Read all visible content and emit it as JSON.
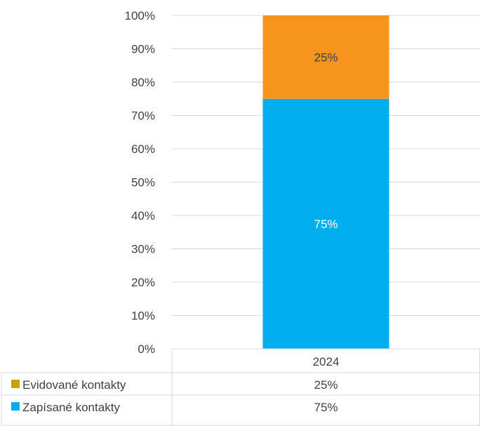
{
  "chart_data": {
    "type": "bar",
    "stacked": true,
    "categories": [
      "2024"
    ],
    "series": [
      {
        "name": "Zapísané kontakty",
        "values": [
          75
        ],
        "label": "75%",
        "color": "#00AEEF"
      },
      {
        "name": "Evidované kontakty",
        "values": [
          25
        ],
        "label": "25%",
        "color": "#F7941D"
      }
    ],
    "ylim": [
      0,
      100
    ],
    "yticks": [
      "0%",
      "10%",
      "20%",
      "30%",
      "40%",
      "50%",
      "60%",
      "70%",
      "80%",
      "90%",
      "100%"
    ],
    "grid": true,
    "legend": "data-table",
    "data_table": {
      "header": [
        "2024"
      ],
      "rows": [
        {
          "legend_color": "#C9A100",
          "name": "Evidované kontakty",
          "values": [
            "25%"
          ]
        },
        {
          "legend_color": "#00AEEF",
          "name": "Zapísané kontakty",
          "values": [
            "75%"
          ]
        }
      ]
    }
  }
}
